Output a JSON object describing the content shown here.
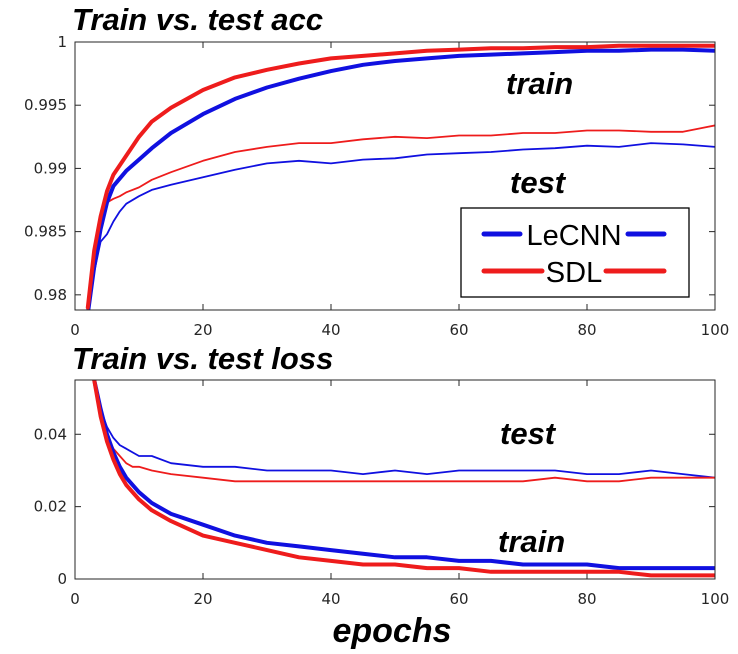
{
  "colors": {
    "lecnn": "#1010e0",
    "sdl": "#ee1c1c",
    "axis": "#262626",
    "tick_text": "#262626"
  },
  "chart_data": [
    {
      "type": "line",
      "title": "Train vs. test acc",
      "xlabel": "",
      "ylabel": "",
      "xlim": [
        0,
        100
      ],
      "ylim": [
        0.9788,
        1.0
      ],
      "xticks": [
        0,
        20,
        40,
        60,
        80,
        100
      ],
      "yticks": [
        0.98,
        0.985,
        0.99,
        0.995,
        1
      ],
      "ytick_labels": [
        "0.98",
        "0.985",
        "0.99",
        "0.995",
        "1"
      ],
      "grid": false,
      "legend": {
        "position": "lower-right",
        "entries": [
          "LeCNN",
          "SDL"
        ]
      },
      "annotations": [
        {
          "text": "train",
          "x": 67,
          "y": 0.9962
        },
        {
          "text": "test",
          "x": 68,
          "y": 0.9887
        }
      ],
      "series": [
        {
          "name": "LeCNN",
          "split": "train",
          "color": "#1010e0",
          "x": [
            2,
            3,
            4,
            5,
            6,
            8,
            10,
            12,
            15,
            20,
            25,
            30,
            35,
            40,
            45,
            50,
            55,
            60,
            65,
            70,
            75,
            80,
            85,
            90,
            95,
            100
          ],
          "y": [
            0.9785,
            0.9822,
            0.9852,
            0.9873,
            0.9886,
            0.9898,
            0.9907,
            0.9916,
            0.9928,
            0.9943,
            0.9955,
            0.9964,
            0.9971,
            0.9977,
            0.9982,
            0.9985,
            0.9987,
            0.9989,
            0.999,
            0.9991,
            0.9992,
            0.9993,
            0.9993,
            0.9994,
            0.9994,
            0.9993
          ]
        },
        {
          "name": "SDL",
          "split": "train",
          "color": "#ee1c1c",
          "x": [
            2,
            3,
            4,
            5,
            6,
            8,
            10,
            12,
            15,
            20,
            25,
            30,
            35,
            40,
            45,
            50,
            55,
            60,
            65,
            70,
            75,
            80,
            85,
            90,
            95,
            100
          ],
          "y": [
            0.979,
            0.9835,
            0.9862,
            0.9882,
            0.9895,
            0.991,
            0.9925,
            0.9937,
            0.9948,
            0.9962,
            0.9972,
            0.9978,
            0.9983,
            0.9987,
            0.9989,
            0.9991,
            0.9993,
            0.9994,
            0.9995,
            0.9995,
            0.9996,
            0.9996,
            0.9997,
            0.9997,
            0.9997,
            0.9997
          ]
        },
        {
          "name": "LeCNN",
          "split": "test",
          "color": "#1010e0",
          "x": [
            2,
            3,
            4,
            5,
            6,
            7,
            8,
            10,
            12,
            15,
            20,
            25,
            30,
            35,
            40,
            45,
            50,
            55,
            60,
            65,
            70,
            75,
            80,
            85,
            90,
            95,
            100
          ],
          "y": [
            0.9785,
            0.9818,
            0.9842,
            0.9848,
            0.9858,
            0.9866,
            0.9872,
            0.9878,
            0.9883,
            0.9887,
            0.9893,
            0.9899,
            0.9904,
            0.9906,
            0.9904,
            0.9907,
            0.9908,
            0.9911,
            0.9912,
            0.9913,
            0.9915,
            0.9916,
            0.9918,
            0.9917,
            0.992,
            0.9919,
            0.9917
          ]
        },
        {
          "name": "SDL",
          "split": "test",
          "color": "#ee1c1c",
          "x": [
            2,
            3,
            4,
            5,
            6,
            7,
            8,
            10,
            12,
            15,
            20,
            25,
            30,
            35,
            40,
            45,
            50,
            55,
            60,
            65,
            70,
            75,
            80,
            85,
            90,
            95,
            100
          ],
          "y": [
            0.979,
            0.9835,
            0.9864,
            0.9873,
            0.9876,
            0.9878,
            0.9881,
            0.9885,
            0.9891,
            0.9897,
            0.9906,
            0.9913,
            0.9917,
            0.992,
            0.992,
            0.9923,
            0.9925,
            0.9924,
            0.9926,
            0.9926,
            0.9928,
            0.9928,
            0.993,
            0.993,
            0.9929,
            0.9929,
            0.9934
          ]
        }
      ]
    },
    {
      "type": "line",
      "title": "Train vs. test loss",
      "xlabel": "epochs",
      "ylabel": "",
      "xlim": [
        0,
        100
      ],
      "ylim": [
        0,
        0.055
      ],
      "xticks": [
        0,
        20,
        40,
        60,
        80,
        100
      ],
      "yticks": [
        0,
        0.02,
        0.04
      ],
      "ytick_labels": [
        "0",
        "0.02",
        "0.04"
      ],
      "grid": false,
      "annotations": [
        {
          "text": "test",
          "x": 67,
          "y": 0.039
        },
        {
          "text": "train",
          "x": 67,
          "y": 0.008
        }
      ],
      "series": [
        {
          "name": "LeCNN",
          "split": "test",
          "color": "#1010e0",
          "x": [
            3,
            4,
            5,
            6,
            7,
            8,
            9,
            10,
            12,
            15,
            20,
            25,
            30,
            35,
            40,
            45,
            50,
            55,
            60,
            65,
            70,
            75,
            80,
            85,
            90,
            95,
            100
          ],
          "y": [
            0.055,
            0.047,
            0.042,
            0.039,
            0.037,
            0.036,
            0.035,
            0.034,
            0.034,
            0.032,
            0.031,
            0.031,
            0.03,
            0.03,
            0.03,
            0.029,
            0.03,
            0.029,
            0.03,
            0.03,
            0.03,
            0.03,
            0.029,
            0.029,
            0.03,
            0.029,
            0.028
          ]
        },
        {
          "name": "SDL",
          "split": "test",
          "color": "#ee1c1c",
          "x": [
            3,
            4,
            5,
            6,
            7,
            8,
            9,
            10,
            12,
            15,
            20,
            25,
            30,
            35,
            40,
            45,
            50,
            55,
            60,
            65,
            70,
            75,
            80,
            85,
            90,
            95,
            100
          ],
          "y": [
            0.055,
            0.046,
            0.04,
            0.036,
            0.034,
            0.032,
            0.031,
            0.031,
            0.03,
            0.029,
            0.028,
            0.027,
            0.027,
            0.027,
            0.027,
            0.027,
            0.027,
            0.027,
            0.027,
            0.027,
            0.027,
            0.028,
            0.027,
            0.027,
            0.028,
            0.028,
            0.028
          ]
        },
        {
          "name": "LeCNN",
          "split": "train",
          "color": "#1010e0",
          "x": [
            3,
            4,
            5,
            6,
            7,
            8,
            9,
            10,
            12,
            15,
            20,
            25,
            30,
            35,
            40,
            45,
            50,
            55,
            60,
            65,
            70,
            75,
            80,
            85,
            90,
            95,
            100
          ],
          "y": [
            0.055,
            0.047,
            0.04,
            0.035,
            0.031,
            0.028,
            0.026,
            0.024,
            0.021,
            0.018,
            0.015,
            0.012,
            0.01,
            0.009,
            0.008,
            0.007,
            0.006,
            0.006,
            0.005,
            0.005,
            0.004,
            0.004,
            0.004,
            0.003,
            0.003,
            0.003,
            0.003
          ]
        },
        {
          "name": "SDL",
          "split": "train",
          "color": "#ee1c1c",
          "x": [
            3,
            4,
            5,
            6,
            7,
            8,
            9,
            10,
            12,
            15,
            20,
            25,
            30,
            35,
            40,
            45,
            50,
            55,
            60,
            65,
            70,
            75,
            80,
            85,
            90,
            95,
            100
          ],
          "y": [
            0.055,
            0.045,
            0.038,
            0.033,
            0.029,
            0.026,
            0.024,
            0.022,
            0.019,
            0.016,
            0.012,
            0.01,
            0.008,
            0.006,
            0.005,
            0.004,
            0.004,
            0.003,
            0.003,
            0.002,
            0.002,
            0.002,
            0.002,
            0.002,
            0.001,
            0.001,
            0.001
          ]
        }
      ]
    }
  ]
}
